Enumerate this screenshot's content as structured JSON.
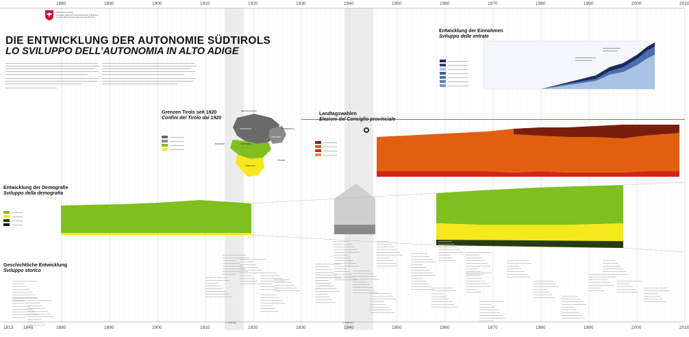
{
  "header": {
    "logo_text": [
      "Südtiroler Landtag",
      "Consiglio della Provincia autonoma di Bolzano",
      "Cunsëi dla Provinzia autonoma de Bulsan"
    ],
    "colors": {
      "logo_red": "#c8102e",
      "logo_white": "#ffffff"
    }
  },
  "timeline": {
    "top_years": [
      "1880",
      "1890",
      "1900",
      "1910",
      "1920",
      "1930",
      "1940",
      "1950",
      "1960",
      "1970",
      "1980",
      "1990",
      "2000",
      "2010"
    ],
    "bottom_years": [
      "1813",
      "1848",
      "1880",
      "1890",
      "1900",
      "1910",
      "1920",
      "1930",
      "1940",
      "1950",
      "1960",
      "1970",
      "1980",
      "1990",
      "2000",
      "2010"
    ]
  },
  "title": {
    "de": "DIE ENTWICKLUNG DER AUTONOMIE SÜDTIROLS",
    "it": "LO SVILUPPO DELL’AUTONOMIA IN ALTO ADIGE"
  },
  "sections": {
    "einnahmen": {
      "de": "Entwicklung der Einnahmen",
      "it": "Sviluppo delle entrate"
    },
    "grenzen": {
      "de": "Grenzen Tirols seit 1920",
      "it": "Confini del Tirolo dal 1920"
    },
    "landtag": {
      "de": "Landtagswahlen",
      "it": "Elezioni del Consiglio provinciale"
    },
    "demografie": {
      "de": "Entwicklung der Demografie",
      "it": "Sviluppo della demografia"
    },
    "geschichte": {
      "de": "Geschichtliche Entwicklung",
      "it": "Sviluppo storico"
    }
  },
  "map_labels": {
    "deutschland": "DEUTSCHLAND",
    "oesterreich": "ÖSTERREICH",
    "schweiz": "SCHWEIZ",
    "italien": "ITALIEN",
    "nordtirol": "NORDTIROL",
    "osttirol": "OSTTIROL",
    "suedtirol": "SÜDTIROL",
    "trentino": "TRENTINO"
  },
  "bottom_tags": {
    "w1": "1. Weltkrieg",
    "w2": "2. Weltkrieg"
  },
  "colors": {
    "green": "#7fbf1f",
    "yellow": "#f5e81c",
    "darkgreen": "#2a3a10",
    "orange": "#e06010",
    "darkred": "#7a1e0c",
    "red": "#d02818",
    "navy": "#1b2a5a",
    "blue": "#4a6fb0",
    "lightblue": "#a9c2e3",
    "grey": "#8a8a8a",
    "war_shade": "#ececec"
  }
}
